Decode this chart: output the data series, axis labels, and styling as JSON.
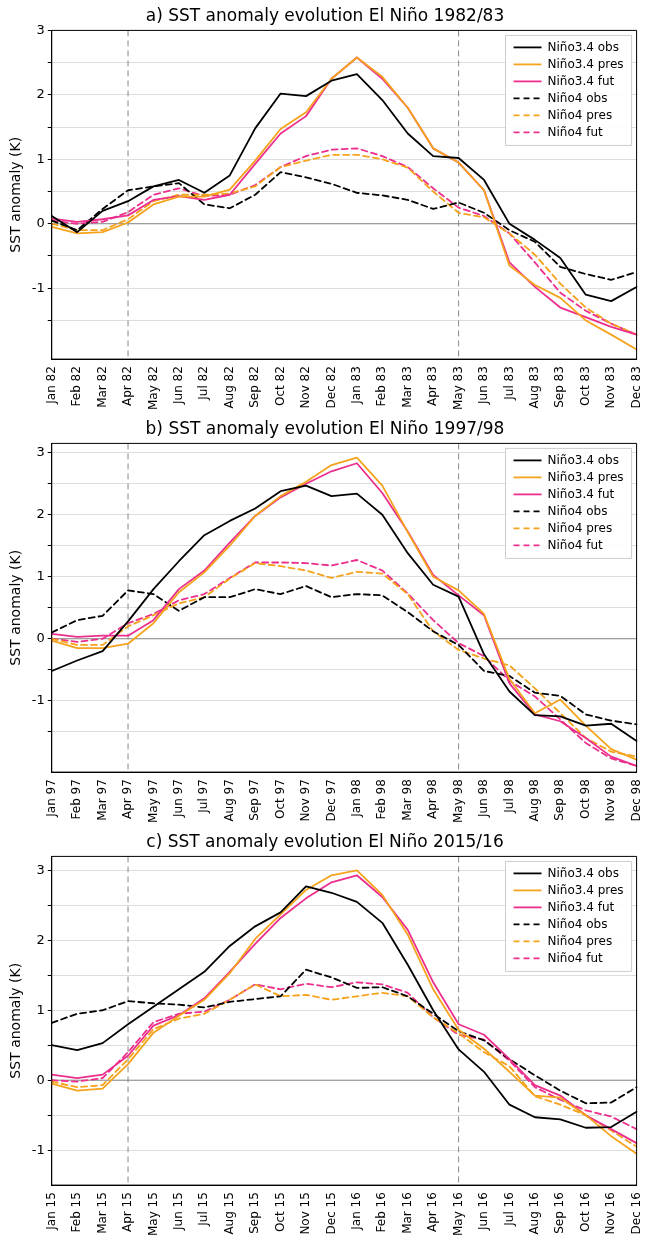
{
  "chart_data": [
    {
      "type": "line",
      "title": "a) SST anomaly evolution El Niño 1982/83",
      "ylabel": "SST anomaly (K)",
      "categories": [
        "Jan 82",
        "Feb 82",
        "Mar 82",
        "Apr 82",
        "May 82",
        "Jun 82",
        "Jul 82",
        "Aug 82",
        "Sep 82",
        "Oct 82",
        "Nov 82",
        "Dec 82",
        "Jan 83",
        "Feb 83",
        "Mar 83",
        "Apr 83",
        "May 83",
        "Jun 83",
        "Jul 83",
        "Aug 83",
        "Sep 83",
        "Oct 83",
        "Nov 83",
        "Dec 83"
      ],
      "series": [
        {
          "name": "Niño3.4 obs",
          "color": "#000000",
          "line_style": "solid",
          "values": [
            0.12,
            -0.13,
            0.2,
            0.35,
            0.58,
            0.68,
            0.48,
            0.75,
            1.48,
            2.02,
            1.98,
            2.22,
            2.32,
            1.92,
            1.4,
            1.05,
            1.02,
            0.68,
            0.0,
            -0.25,
            -0.53,
            -1.1,
            -1.2,
            -0.98
          ]
        },
        {
          "name": "Niño3.4 pres",
          "color": "#f5a31c",
          "line_style": "solid",
          "values": [
            -0.05,
            -0.15,
            -0.13,
            0.02,
            0.3,
            0.42,
            0.42,
            0.53,
            0.98,
            1.47,
            1.73,
            2.25,
            2.58,
            2.28,
            1.8,
            1.17,
            0.95,
            0.52,
            -0.65,
            -0.95,
            -1.15,
            -1.5,
            -1.72,
            -1.95
          ]
        },
        {
          "name": "Niño3.4 fut",
          "color": "#ec2f8c",
          "line_style": "solid",
          "values": [
            0.08,
            0.03,
            0.07,
            0.13,
            0.37,
            0.43,
            0.37,
            0.45,
            0.93,
            1.4,
            1.67,
            2.25,
            2.58,
            2.25,
            1.8,
            1.17,
            0.95,
            0.52,
            -0.6,
            -0.98,
            -1.3,
            -1.45,
            -1.6,
            -1.72
          ]
        },
        {
          "name": "Niño4 obs",
          "color": "#000000",
          "line_style": "dashed",
          "values": [
            0.05,
            -0.1,
            0.23,
            0.52,
            0.58,
            0.63,
            0.3,
            0.24,
            0.45,
            0.8,
            0.72,
            0.62,
            0.48,
            0.44,
            0.37,
            0.23,
            0.33,
            0.17,
            -0.1,
            -0.28,
            -0.67,
            -0.78,
            -0.87,
            -0.75
          ]
        },
        {
          "name": "Niño4 pres",
          "color": "#f5a31c",
          "line_style": "dashed",
          "values": [
            0.0,
            -0.1,
            -0.1,
            0.07,
            0.35,
            0.45,
            0.45,
            0.47,
            0.58,
            0.88,
            0.98,
            1.07,
            1.07,
            1.0,
            0.87,
            0.5,
            0.17,
            0.1,
            -0.15,
            -0.48,
            -0.93,
            -1.3,
            -1.55,
            -1.72
          ]
        },
        {
          "name": "Niño4 fut",
          "color": "#ec2f8c",
          "line_style": "dashed",
          "values": [
            0.05,
            0.0,
            0.03,
            0.18,
            0.45,
            0.55,
            0.43,
            0.45,
            0.6,
            0.88,
            1.05,
            1.15,
            1.17,
            1.05,
            0.88,
            0.55,
            0.25,
            0.12,
            -0.15,
            -0.6,
            -1.07,
            -1.35,
            -1.55,
            -1.72
          ]
        }
      ],
      "ylim": [
        -2.1,
        3
      ],
      "yticks": [
        -1,
        {
          "value": -1.5,
          "label": null
        },
        {
          "value": -0.5,
          "label": null
        },
        0,
        {
          "value": 0.5,
          "label": null
        },
        1,
        {
          "value": 1.5,
          "label": null
        },
        2,
        {
          "value": 2.5,
          "label": null
        },
        3
      ],
      "grid": "y",
      "legend": "top right",
      "marker": "none",
      "ref_lines": [
        {
          "axis": "y",
          "value": 0,
          "color": "#888888",
          "line_style": "solid"
        },
        {
          "axis": "x",
          "value": "Apr 82",
          "color": "#888888",
          "line_style": "dashed"
        },
        {
          "axis": "x",
          "value": "May 83",
          "color": "#888888",
          "line_style": "dashed"
        }
      ]
    },
    {
      "type": "line",
      "title": "b) SST anomaly evolution El Niño 1997/98",
      "ylabel": "SST anomaly (K)",
      "categories": [
        "Jan 97",
        "Feb 97",
        "Mar 97",
        "Apr 97",
        "May 97",
        "Jun 97",
        "Jul 97",
        "Aug 97",
        "Sep 97",
        "Oct 97",
        "Nov 97",
        "Dec 97",
        "Jan 98",
        "Feb 98",
        "Mar 98",
        "Apr 98",
        "May 98",
        "Jun 98",
        "Jul 98",
        "Aug 98",
        "Sep 98",
        "Oct 98",
        "Nov 98",
        "Dec 98"
      ],
      "series": [
        {
          "name": "Niño3.4 obs",
          "color": "#000000",
          "line_style": "solid",
          "values": [
            -0.52,
            -0.35,
            -0.2,
            0.28,
            0.8,
            1.25,
            1.67,
            1.9,
            2.1,
            2.38,
            2.47,
            2.3,
            2.34,
            2.0,
            1.38,
            0.87,
            0.68,
            -0.25,
            -0.85,
            -1.23,
            -1.25,
            -1.4,
            -1.37,
            -1.65
          ]
        },
        {
          "name": "Niño3.4 pres",
          "color": "#f5a31c",
          "line_style": "solid",
          "values": [
            -0.03,
            -0.15,
            -0.15,
            -0.08,
            0.25,
            0.75,
            1.07,
            1.5,
            1.98,
            2.3,
            2.53,
            2.8,
            2.92,
            2.47,
            1.72,
            1.0,
            0.78,
            0.4,
            -0.65,
            -1.2,
            -0.98,
            -1.4,
            -1.78,
            -1.95
          ]
        },
        {
          "name": "Niño3.4 fut",
          "color": "#ec2f8c",
          "line_style": "solid",
          "values": [
            0.08,
            0.03,
            0.05,
            0.05,
            0.3,
            0.8,
            1.1,
            1.55,
            1.98,
            2.28,
            2.5,
            2.7,
            2.83,
            2.35,
            1.73,
            1.03,
            0.7,
            0.38,
            -0.72,
            -1.22,
            -1.33,
            -1.6,
            -1.9,
            -2.05
          ]
        },
        {
          "name": "Niño4 obs",
          "color": "#000000",
          "line_style": "dashed",
          "values": [
            0.1,
            0.3,
            0.37,
            0.78,
            0.72,
            0.45,
            0.67,
            0.67,
            0.8,
            0.72,
            0.85,
            0.67,
            0.72,
            0.7,
            0.43,
            0.12,
            -0.1,
            -0.52,
            -0.6,
            -0.87,
            -0.92,
            -1.22,
            -1.32,
            -1.38
          ]
        },
        {
          "name": "Niño4 pres",
          "color": "#f5a31c",
          "line_style": "dashed",
          "values": [
            0.0,
            -0.1,
            -0.1,
            0.2,
            0.38,
            0.57,
            0.67,
            0.97,
            1.22,
            1.17,
            1.1,
            0.98,
            1.08,
            1.05,
            0.72,
            0.12,
            -0.18,
            -0.32,
            -0.43,
            -0.8,
            -1.2,
            -1.6,
            -1.82,
            -1.9
          ]
        },
        {
          "name": "Niño4 fut",
          "color": "#ec2f8c",
          "line_style": "dashed",
          "values": [
            0.0,
            -0.05,
            0.0,
            0.25,
            0.4,
            0.62,
            0.72,
            0.98,
            1.23,
            1.23,
            1.22,
            1.18,
            1.27,
            1.1,
            0.73,
            0.3,
            -0.07,
            -0.28,
            -0.68,
            -0.93,
            -1.3,
            -1.68,
            -1.93,
            -2.05
          ]
        }
      ],
      "ylim": [
        -2.15,
        3.15
      ],
      "yticks": [
        -1,
        {
          "value": -1.5,
          "label": null
        },
        {
          "value": -0.5,
          "label": null
        },
        0,
        {
          "value": 0.5,
          "label": null
        },
        1,
        {
          "value": 1.5,
          "label": null
        },
        2,
        {
          "value": 2.5,
          "label": null
        },
        3
      ],
      "grid": "y",
      "legend": "top right",
      "marker": "none",
      "ref_lines": [
        {
          "axis": "y",
          "value": 0,
          "color": "#888888",
          "line_style": "solid"
        },
        {
          "axis": "x",
          "value": "Apr 97",
          "color": "#888888",
          "line_style": "dashed"
        },
        {
          "axis": "x",
          "value": "May 98",
          "color": "#888888",
          "line_style": "dashed"
        }
      ]
    },
    {
      "type": "line",
      "title": "c) SST anomaly evolution El Niño 2015/16",
      "ylabel": "SST anomaly (K)",
      "categories": [
        "Jan 15",
        "Feb 15",
        "Mar 15",
        "Apr 15",
        "May 15",
        "Jun 15",
        "Jul 15",
        "Aug 15",
        "Sep 15",
        "Oct 15",
        "Nov 15",
        "Dec 15",
        "Jan 16",
        "Feb 16",
        "Mar 16",
        "Apr 16",
        "May 16",
        "Jun 16",
        "Jul 16",
        "Aug 16",
        "Sep 16",
        "Oct 16",
        "Nov 16",
        "Dec 16"
      ],
      "series": [
        {
          "name": "Niño3.4 obs",
          "color": "#000000",
          "line_style": "solid",
          "values": [
            0.5,
            0.43,
            0.53,
            0.8,
            1.05,
            1.3,
            1.55,
            1.92,
            2.2,
            2.4,
            2.77,
            2.68,
            2.55,
            2.25,
            1.65,
            1.0,
            0.44,
            0.12,
            -0.35,
            -0.53,
            -0.56,
            -0.68,
            -0.67,
            -0.45
          ]
        },
        {
          "name": "Niño3.4 pres",
          "color": "#f5a31c",
          "line_style": "solid",
          "values": [
            -0.05,
            -0.15,
            -0.12,
            0.23,
            0.68,
            0.92,
            1.15,
            1.53,
            2.02,
            2.37,
            2.72,
            2.93,
            3.0,
            2.65,
            2.08,
            1.3,
            0.72,
            0.45,
            0.12,
            -0.22,
            -0.25,
            -0.5,
            -0.8,
            -1.05
          ]
        },
        {
          "name": "Niño3.4 fut",
          "color": "#ec2f8c",
          "line_style": "solid",
          "values": [
            0.08,
            0.03,
            0.08,
            0.35,
            0.78,
            0.93,
            1.17,
            1.55,
            1.95,
            2.32,
            2.6,
            2.83,
            2.93,
            2.62,
            2.15,
            1.4,
            0.8,
            0.65,
            0.3,
            -0.07,
            -0.22,
            -0.5,
            -0.7,
            -0.9
          ]
        },
        {
          "name": "Niño4 obs",
          "color": "#000000",
          "line_style": "dashed",
          "values": [
            0.82,
            0.95,
            1.0,
            1.13,
            1.1,
            1.08,
            1.04,
            1.12,
            1.16,
            1.2,
            1.58,
            1.47,
            1.32,
            1.33,
            1.2,
            0.95,
            0.7,
            0.57,
            0.3,
            0.07,
            -0.15,
            -0.33,
            -0.32,
            -0.1
          ]
        },
        {
          "name": "Niño4 pres",
          "color": "#f5a31c",
          "line_style": "dashed",
          "values": [
            -0.02,
            -0.1,
            -0.07,
            0.3,
            0.73,
            0.88,
            0.95,
            1.15,
            1.37,
            1.2,
            1.22,
            1.15,
            1.2,
            1.25,
            1.2,
            0.9,
            0.67,
            0.4,
            0.2,
            -0.23,
            -0.35,
            -0.5,
            -0.72,
            -0.95
          ]
        },
        {
          "name": "Niño4 fut",
          "color": "#ec2f8c",
          "line_style": "dashed",
          "values": [
            0.0,
            -0.02,
            0.03,
            0.4,
            0.83,
            0.95,
            0.98,
            1.15,
            1.37,
            1.3,
            1.38,
            1.33,
            1.4,
            1.37,
            1.25,
            0.9,
            0.65,
            0.58,
            0.28,
            -0.1,
            -0.28,
            -0.43,
            -0.52,
            -0.7
          ]
        }
      ],
      "ylim": [
        -1.5,
        3.2
      ],
      "yticks": [
        -1,
        {
          "value": -0.5,
          "label": null
        },
        0,
        {
          "value": 0.5,
          "label": null
        },
        1,
        {
          "value": 1.5,
          "label": null
        },
        2,
        {
          "value": 2.5,
          "label": null
        },
        3
      ],
      "grid": "y",
      "legend": "top right",
      "marker": "none",
      "ref_lines": [
        {
          "axis": "y",
          "value": 0,
          "color": "#888888",
          "line_style": "solid"
        },
        {
          "axis": "x",
          "value": "Apr 15",
          "color": "#888888",
          "line_style": "dashed"
        },
        {
          "axis": "x",
          "value": "May 16",
          "color": "#888888",
          "line_style": "dashed"
        }
      ]
    }
  ]
}
